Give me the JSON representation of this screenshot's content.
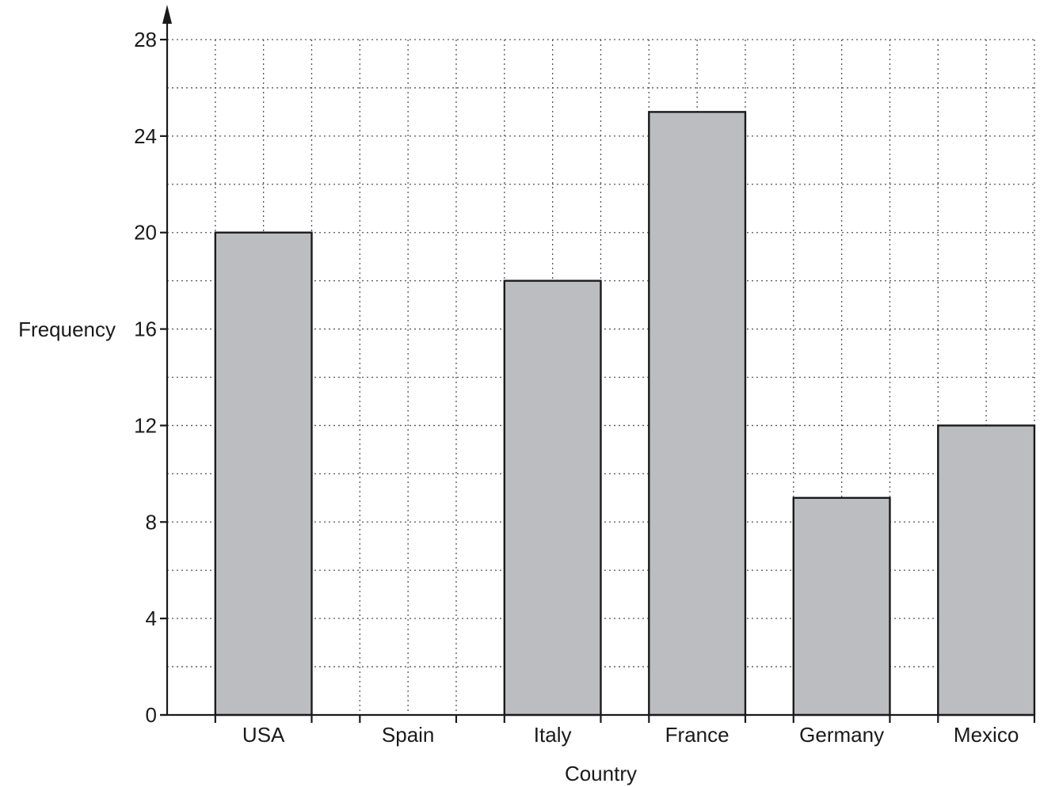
{
  "chart_data": {
    "type": "bar",
    "xlabel": "Country",
    "ylabel": "Frequency",
    "categories": [
      "USA",
      "Spain",
      "Italy",
      "France",
      "Germany",
      "Mexico"
    ],
    "values": [
      20,
      0,
      18,
      25,
      9,
      12
    ],
    "ylim": [
      0,
      28
    ],
    "yticks": [
      "0",
      "4",
      "8",
      "12",
      "16",
      "20",
      "24",
      "28"
    ],
    "grid": true,
    "bar_color": "#bcbdc0",
    "legend": "none"
  }
}
